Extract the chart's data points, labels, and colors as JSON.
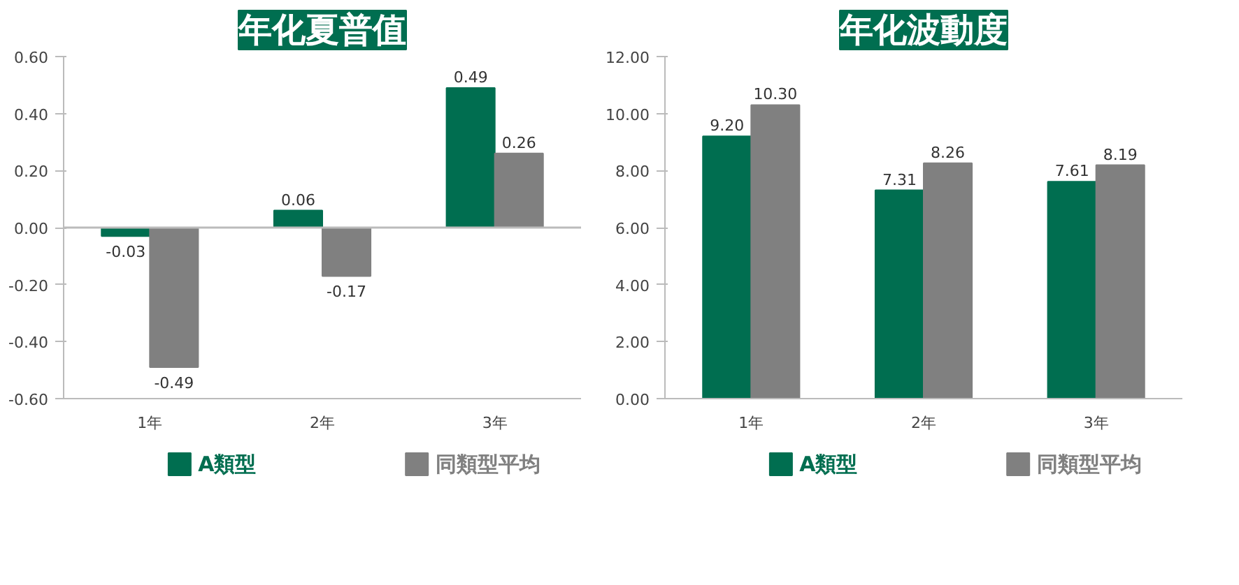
{
  "chart_data": [
    {
      "type": "bar",
      "title": "年化夏普值",
      "categories": [
        "1年",
        "2年",
        "3年"
      ],
      "series": [
        {
          "name": "A類型",
          "color": "#006e50",
          "values": [
            -0.03,
            0.06,
            0.49
          ],
          "value_labels": [
            "-0.03",
            "0.06",
            "0.49"
          ]
        },
        {
          "name": "同類型平均",
          "color": "#808080",
          "values": [
            -0.49,
            -0.17,
            0.26
          ],
          "value_labels": [
            "-0.49",
            "-0.17",
            "0.26"
          ]
        }
      ],
      "ylim": [
        -0.6,
        0.6
      ],
      "yticks": [
        {
          "value": -0.6,
          "label": "-0.60"
        },
        {
          "value": -0.4,
          "label": "-0.40"
        },
        {
          "value": -0.2,
          "label": "-0.20"
        },
        {
          "value": 0,
          "label": "0.00"
        },
        {
          "value": 0.2,
          "label": "0.20"
        },
        {
          "value": 0.4,
          "label": "0.40"
        },
        {
          "value": 0.6,
          "label": "0.60"
        }
      ],
      "ref_lines": [
        {
          "axis": "y",
          "value": 0,
          "color": "#bbbbbb"
        }
      ],
      "grid": false,
      "legend": "bottom"
    },
    {
      "type": "bar",
      "title": "年化波動度",
      "categories": [
        "1年",
        "2年",
        "3年"
      ],
      "series": [
        {
          "name": "A類型",
          "color": "#006e50",
          "values": [
            9.2,
            7.31,
            7.61
          ],
          "value_labels": [
            "9.20",
            "7.31",
            "7.61"
          ]
        },
        {
          "name": "同類型平均",
          "color": "#808080",
          "values": [
            10.3,
            8.26,
            8.19
          ],
          "value_labels": [
            "10.30",
            "8.26",
            "8.19"
          ]
        }
      ],
      "ylim": [
        0,
        12
      ],
      "yticks": [
        {
          "value": 0,
          "label": "0.00"
        },
        {
          "value": 2,
          "label": "2.00"
        },
        {
          "value": 4,
          "label": "4.00"
        },
        {
          "value": 6,
          "label": "6.00"
        },
        {
          "value": 8,
          "label": "8.00"
        },
        {
          "value": 10,
          "label": "10.00"
        },
        {
          "value": 12,
          "label": "12.00"
        }
      ],
      "grid": false,
      "legend": "bottom"
    }
  ]
}
